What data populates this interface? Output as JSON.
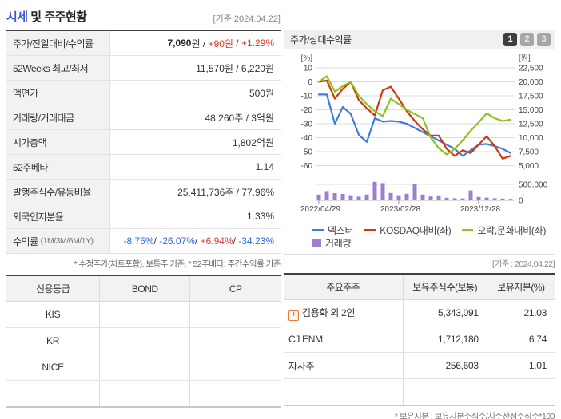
{
  "header": {
    "title_highlight": "시세",
    "title_rest": " 및 주주현황",
    "date_note": "[기준:2024.04.22]"
  },
  "quote": {
    "rows": [
      {
        "label": "주가/전일대비/수익률",
        "suffix": "",
        "parts": [
          {
            "t": "7,090",
            "c": "bold"
          },
          {
            "t": "원 / ",
            "c": ""
          },
          {
            "t": "+90원",
            "c": "red"
          },
          {
            "t": " / ",
            "c": ""
          },
          {
            "t": "+1.29%",
            "c": "red"
          }
        ]
      },
      {
        "label": "52Weeks 최고/최저",
        "suffix": "",
        "parts": [
          {
            "t": "11,570원 / 6,220원",
            "c": ""
          }
        ]
      },
      {
        "label": "액면가",
        "suffix": "",
        "parts": [
          {
            "t": "500원",
            "c": ""
          }
        ]
      },
      {
        "label": "거래량/거래대금",
        "suffix": "",
        "parts": [
          {
            "t": "48,260주 / 3억원",
            "c": ""
          }
        ]
      },
      {
        "label": "시가총액",
        "suffix": "",
        "parts": [
          {
            "t": "1,802억원",
            "c": ""
          }
        ]
      },
      {
        "label": "52주베타",
        "suffix": "",
        "parts": [
          {
            "t": "1.14",
            "c": ""
          }
        ]
      },
      {
        "label": "발행주식수/유동비율",
        "suffix": "",
        "parts": [
          {
            "t": "25,411,736주 / 77.96%",
            "c": ""
          }
        ]
      },
      {
        "label": "외국인지분율",
        "suffix": "",
        "parts": [
          {
            "t": "1.33%",
            "c": ""
          }
        ]
      },
      {
        "label": "수익률",
        "suffix": "(1M/3M/6M/1Y)",
        "parts": [
          {
            "t": "-8.75%",
            "c": "blue"
          },
          {
            "t": "/ ",
            "c": ""
          },
          {
            "t": "-26.07%",
            "c": "blue"
          },
          {
            "t": "/ ",
            "c": ""
          },
          {
            "t": "+6.94%",
            "c": "red"
          },
          {
            "t": "/ ",
            "c": ""
          },
          {
            "t": "-34.23%",
            "c": "blue"
          }
        ]
      }
    ],
    "footnote": "* 수정주가(차트포함), 보통주 기준, * 52주베타: 주간수익률 기준"
  },
  "credit": {
    "headers": [
      "신용등급",
      "BOND",
      "CP"
    ],
    "rows": [
      [
        "KIS",
        "",
        ""
      ],
      [
        "KR",
        "",
        ""
      ],
      [
        "NICE",
        "",
        ""
      ],
      [
        "",
        "",
        ""
      ]
    ]
  },
  "chart_panel": {
    "title": "주가/상대수익률",
    "page_buttons": [
      {
        "label": "1",
        "active": true
      },
      {
        "label": "2",
        "active": false
      },
      {
        "label": "3",
        "active": false
      }
    ]
  },
  "chart_data": {
    "type": "line",
    "left_axis": {
      "label": "[%]",
      "ticks": [
        10,
        0,
        -10,
        -20,
        -30,
        -40,
        -50,
        -60
      ],
      "range": [
        10,
        -60
      ]
    },
    "right_axis": {
      "label": "[원]",
      "ticks": [
        "22,500",
        "20,000",
        "17,500",
        "15,000",
        "12,500",
        "10,000",
        "7,500",
        "5,000"
      ]
    },
    "x_ticks": [
      {
        "label": "2022/04/29",
        "index": 0
      },
      {
        "label": "2023/02/28",
        "index": 10
      },
      {
        "label": "2023/12/28",
        "index": 20
      }
    ],
    "series": [
      {
        "name": "덱스터",
        "color": "#3e7ce0",
        "axis": "left",
        "values": [
          -9,
          -9,
          -30,
          -18,
          -23,
          -38,
          -43,
          -26,
          -28.5,
          -28,
          -28.5,
          -30,
          -33,
          -36,
          -39,
          -42,
          -45,
          -48,
          -53,
          -49,
          -45,
          -44.5,
          -46,
          -48,
          -51
        ]
      },
      {
        "name": "KOSDAQ대비(좌)",
        "color": "#cf3a12",
        "axis": "left",
        "values": [
          0,
          1,
          -12,
          -5,
          0,
          -13,
          -19,
          -24,
          -6,
          -3.5,
          -12,
          -21,
          -28,
          -34,
          -38.5,
          -38.5,
          -48,
          -53,
          -49,
          -51,
          -45,
          -39,
          -46,
          -55,
          -53
        ]
      },
      {
        "name": "오락,문화대비(좌)",
        "color": "#8ec41c",
        "axis": "left",
        "values": [
          0,
          4,
          -7,
          -3,
          0,
          -10,
          -16,
          -21,
          -24.5,
          -12,
          -16,
          -20,
          -23,
          -26,
          -40,
          -47.5,
          -52,
          -48,
          -42,
          -35,
          -29,
          -22.5,
          -26,
          -28,
          -27
        ]
      }
    ],
    "volume": {
      "name": "거래량",
      "color": "#9b7fd2",
      "axis_ticks": [
        "500,000",
        "0"
      ],
      "axis_max": 500000,
      "values": [
        180000,
        290000,
        225000,
        200000,
        160000,
        115000,
        180000,
        580000,
        540000,
        230000,
        160000,
        205000,
        510000,
        180000,
        120000,
        155000,
        80000,
        65000,
        60000,
        310000,
        105000,
        85000,
        65000,
        55000,
        45000
      ]
    },
    "legend_position": "bottom",
    "grid": true
  },
  "holders": {
    "date_note": "[기준 : 2024.04.22]",
    "headers": [
      "주요주주",
      "보유주식수(보통)",
      "보유지분(%)"
    ],
    "rows": [
      {
        "icon": true,
        "name": "김용화 외 2인",
        "shares": "5,343,091",
        "pct": "21.03"
      },
      {
        "icon": false,
        "name": "CJ ENM",
        "shares": "1,712,180",
        "pct": "6.74"
      },
      {
        "icon": false,
        "name": "자사주",
        "shares": "256,603",
        "pct": "1.01"
      },
      {
        "icon": false,
        "name": "",
        "shares": "",
        "pct": ""
      }
    ],
    "footnote": "* 보유지분 : 보유지분주식수/지수산정주식수*100"
  }
}
